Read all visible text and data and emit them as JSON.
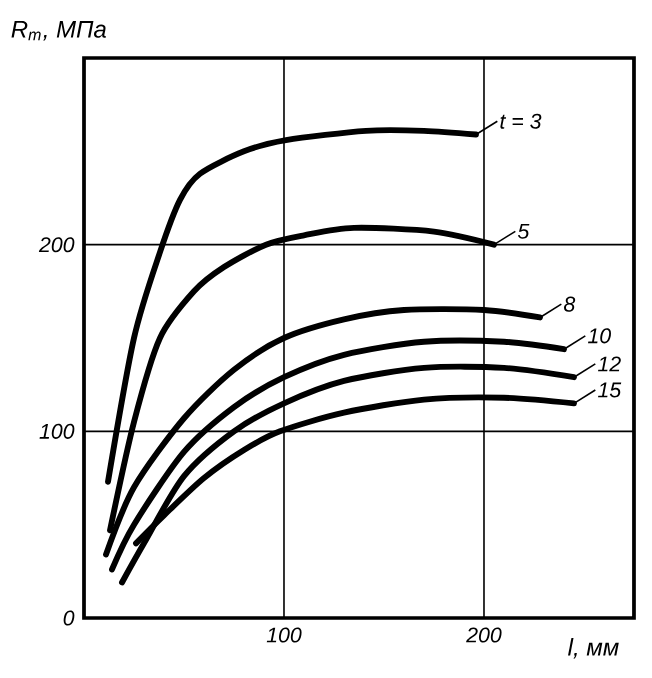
{
  "chart_data": {
    "type": "line",
    "xlabel": "l, мм",
    "ylabel": "R$_{m}$, МПа",
    "xlim": [
      0,
      275
    ],
    "ylim": [
      0,
      300
    ],
    "xticks": [
      100,
      200
    ],
    "yticks": [
      0,
      100,
      200
    ],
    "grid": true,
    "legend": "right",
    "marker": "none",
    "line_style": "solid",
    "series": [
      {
        "name": "t = 3",
        "color": "#000000",
        "x": [
          12,
          25,
          38,
          48,
          58,
          80,
          101,
          141,
          170,
          196
        ],
        "values": [
          73,
          150,
          196,
          224,
          238,
          250,
          256,
          261,
          261,
          259
        ]
      },
      {
        "name": "5",
        "color": "#000000",
        "x": [
          13,
          25,
          38,
          55,
          70,
          91,
          110,
          135,
          175,
          205
        ],
        "values": [
          47,
          105,
          150,
          175,
          188,
          200,
          205,
          209,
          207,
          200
        ]
      },
      {
        "name": "8",
        "color": "#000000",
        "x": [
          11,
          25,
          50,
          75,
          100,
          130,
          160,
          200,
          228
        ],
        "values": [
          34,
          70,
          107,
          133,
          150,
          160,
          165,
          165,
          161
        ]
      },
      {
        "name": "10",
        "color": "#000000",
        "x": [
          14,
          25,
          50,
          75,
          100,
          130,
          170,
          210,
          240
        ],
        "values": [
          26,
          50,
          89,
          113,
          129,
          141,
          148,
          148,
          144
        ]
      },
      {
        "name": "12",
        "color": "#000000",
        "x": [
          19,
          30,
          50,
          75,
          100,
          130,
          170,
          210,
          245
        ],
        "values": [
          19,
          40,
          76,
          100,
          115,
          127,
          134,
          134,
          129
        ]
      },
      {
        "name": "15",
        "color": "#000000",
        "x": [
          26,
          40,
          60,
          80,
          98,
          130,
          170,
          210,
          245
        ],
        "values": [
          40,
          55,
          75,
          90,
          100,
          110,
          117,
          118,
          115
        ]
      }
    ]
  }
}
